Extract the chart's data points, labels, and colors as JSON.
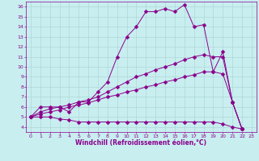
{
  "xlabel": "Windchill (Refroidissement éolien,°C)",
  "bg_color": "#c8eef0",
  "line_color": "#8b008b",
  "grid_color": "#b0d8d8",
  "xlim": [
    -0.5,
    23.5
  ],
  "ylim": [
    3.5,
    16.5
  ],
  "yticks": [
    4,
    5,
    6,
    7,
    8,
    9,
    10,
    11,
    12,
    13,
    14,
    15,
    16
  ],
  "xticks": [
    0,
    1,
    2,
    3,
    4,
    5,
    6,
    7,
    8,
    9,
    10,
    11,
    12,
    13,
    14,
    15,
    16,
    17,
    18,
    19,
    20,
    21,
    22,
    23
  ],
  "series": [
    {
      "x": [
        0,
        1,
        2,
        3,
        4,
        5,
        6,
        7,
        8,
        9,
        10,
        11,
        12,
        13,
        14,
        15,
        16,
        17,
        18,
        19,
        20,
        21,
        22
      ],
      "y": [
        5.0,
        6.0,
        6.0,
        6.0,
        5.5,
        6.5,
        6.5,
        7.5,
        8.5,
        11.0,
        13.0,
        14.0,
        15.5,
        15.5,
        15.8,
        15.5,
        16.2,
        14.0,
        14.2,
        9.5,
        11.5,
        6.5,
        3.8
      ],
      "marker": "D",
      "markersize": 2.5
    },
    {
      "x": [
        0,
        1,
        2,
        3,
        4,
        5,
        6,
        7,
        8,
        9,
        10,
        11,
        12,
        13,
        14,
        15,
        16,
        17,
        18,
        19,
        20,
        21,
        22
      ],
      "y": [
        5.0,
        5.5,
        5.8,
        6.0,
        6.2,
        6.5,
        6.7,
        7.0,
        7.5,
        8.0,
        8.5,
        9.0,
        9.3,
        9.7,
        10.0,
        10.3,
        10.7,
        11.0,
        11.2,
        11.0,
        11.0,
        6.5,
        3.8
      ],
      "marker": "D",
      "markersize": 2.5
    },
    {
      "x": [
        0,
        1,
        2,
        3,
        4,
        5,
        6,
        7,
        8,
        9,
        10,
        11,
        12,
        13,
        14,
        15,
        16,
        17,
        18,
        19,
        20,
        21,
        22
      ],
      "y": [
        5.0,
        5.3,
        5.5,
        5.7,
        6.0,
        6.2,
        6.4,
        6.7,
        7.0,
        7.2,
        7.5,
        7.7,
        8.0,
        8.2,
        8.5,
        8.7,
        9.0,
        9.2,
        9.5,
        9.5,
        9.3,
        6.5,
        3.8
      ],
      "marker": "D",
      "markersize": 2.5
    },
    {
      "x": [
        0,
        1,
        2,
        3,
        4,
        5,
        6,
        7,
        8,
        9,
        10,
        11,
        12,
        13,
        14,
        15,
        16,
        17,
        18,
        19,
        20,
        21,
        22
      ],
      "y": [
        5.0,
        5.0,
        5.0,
        4.8,
        4.7,
        4.5,
        4.5,
        4.5,
        4.5,
        4.5,
        4.5,
        4.5,
        4.5,
        4.5,
        4.5,
        4.5,
        4.5,
        4.5,
        4.5,
        4.5,
        4.3,
        4.0,
        3.8
      ],
      "marker": "D",
      "markersize": 2.5
    }
  ]
}
